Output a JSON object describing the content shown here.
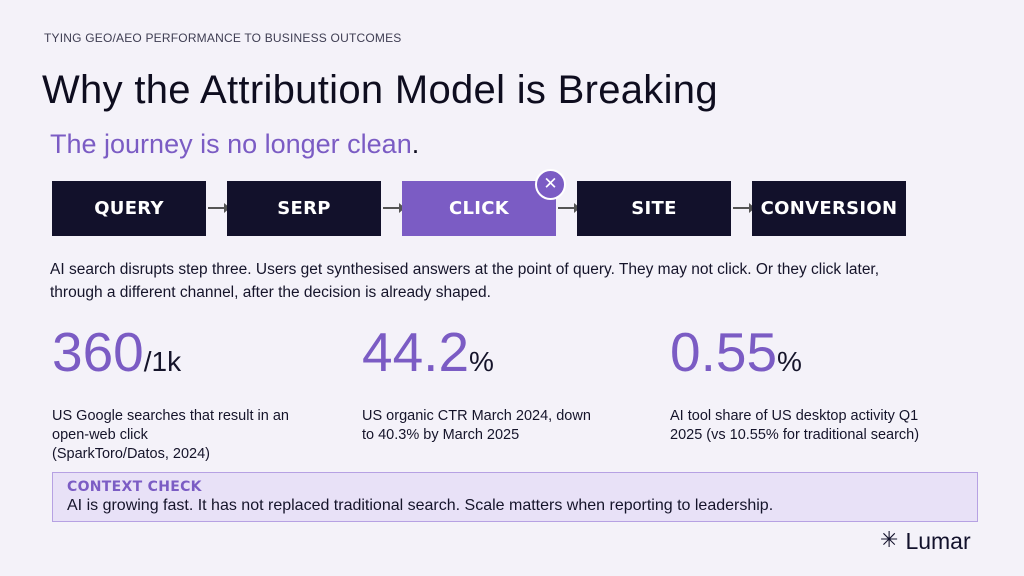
{
  "eyebrow": "TYING GEO/AEO PERFORMANCE TO BUSINESS OUTCOMES",
  "title": "Why the Attribution Model is Breaking",
  "subtitle": {
    "text": "The journey is no longer clean",
    "dot": "."
  },
  "flow": {
    "steps": [
      "QUERY",
      "SERP",
      "CLICK",
      "SITE",
      "CONVERSION"
    ],
    "active_index": 2,
    "badge_icon": "close-icon",
    "badge_glyph": "✕"
  },
  "description": "AI search disrupts step three. Users get synthesised answers at the point of query. They may not click. Or they click later, through a different channel, after the decision is already shaped.",
  "stats": [
    {
      "value": "360",
      "unit": "/1k",
      "caption_lines": [
        "US Google searches that result in an",
        "open-web click",
        "(SparkToro/Datos, 2024)"
      ]
    },
    {
      "value": "44.2",
      "unit": "%",
      "caption_lines": [
        "US organic CTR March 2024, down",
        "to 40.3% by March 2025"
      ]
    },
    {
      "value": "0.55",
      "unit": "%",
      "caption_lines": [
        "AI tool share of US desktop activity Q1",
        "2025 (vs 10.55% for traditional search)"
      ]
    }
  ],
  "context": {
    "heading": "CONTEXT CHECK",
    "body": "AI is growing fast. It has not replaced traditional search. Scale matters when reporting to leadership."
  },
  "logo": {
    "icon": "sparkle-icon",
    "glyph": "✳",
    "text": "Lumar"
  },
  "colors": {
    "accent": "#7b5cc4",
    "dark": "#12112b",
    "background": "#f4f2f9"
  }
}
